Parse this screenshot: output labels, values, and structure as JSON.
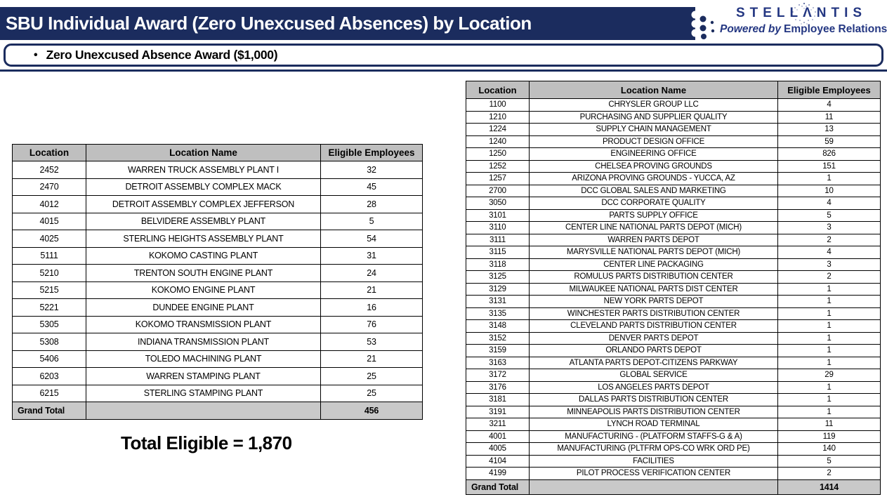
{
  "title_bar": {
    "title": "SBU Individual Award (Zero Unexcused Absences) by Location"
  },
  "logo": {
    "brand": "STELLΛNTIS",
    "tagline_prefix": "Powered by",
    "tagline_suffix": "Employee Relations"
  },
  "callout": {
    "bullet": "•",
    "text": "Zero Unexcused Absence Award ($1,000)"
  },
  "left_table": {
    "headers": [
      "Location",
      "Location Name",
      "Eligible Employees"
    ],
    "rows": [
      {
        "location": "2452",
        "name": "WARREN TRUCK ASSEMBLY PLANT I",
        "eligible": "32"
      },
      {
        "location": "2470",
        "name": "DETROIT ASSEMBLY COMPLEX MACK",
        "eligible": "45"
      },
      {
        "location": "4012",
        "name": "DETROIT ASSEMBLY COMPLEX JEFFERSON",
        "eligible": "28"
      },
      {
        "location": "4015",
        "name": "BELVIDERE ASSEMBLY PLANT",
        "eligible": "5"
      },
      {
        "location": "4025",
        "name": "STERLING HEIGHTS ASSEMBLY PLANT",
        "eligible": "54"
      },
      {
        "location": "5111",
        "name": "KOKOMO CASTING PLANT",
        "eligible": "31"
      },
      {
        "location": "5210",
        "name": "TRENTON SOUTH ENGINE PLANT",
        "eligible": "24"
      },
      {
        "location": "5215",
        "name": "KOKOMO ENGINE PLANT",
        "eligible": "21"
      },
      {
        "location": "5221",
        "name": "DUNDEE ENGINE PLANT",
        "eligible": "16"
      },
      {
        "location": "5305",
        "name": "KOKOMO TRANSMISSION PLANT",
        "eligible": "76"
      },
      {
        "location": "5308",
        "name": "INDIANA TRANSMISSION PLANT",
        "eligible": "53"
      },
      {
        "location": "5406",
        "name": "TOLEDO MACHINING PLANT",
        "eligible": "21"
      },
      {
        "location": "6203",
        "name": "WARREN STAMPING PLANT",
        "eligible": "25"
      },
      {
        "location": "6215",
        "name": "STERLING STAMPING PLANT",
        "eligible": "25"
      }
    ],
    "grand_total_label": "Grand Total",
    "grand_total_value": "456"
  },
  "right_table": {
    "headers": [
      "Location",
      "Location Name",
      "Eligible Employees"
    ],
    "rows": [
      {
        "location": "1100",
        "name": "CHRYSLER GROUP LLC",
        "eligible": "4"
      },
      {
        "location": "1210",
        "name": "PURCHASING AND SUPPLIER QUALITY",
        "eligible": "11"
      },
      {
        "location": "1224",
        "name": "SUPPLY CHAIN MANAGEMENT",
        "eligible": "13"
      },
      {
        "location": "1240",
        "name": "PRODUCT DESIGN OFFICE",
        "eligible": "59"
      },
      {
        "location": "1250",
        "name": "ENGINEERING OFFICE",
        "eligible": "826"
      },
      {
        "location": "1252",
        "name": "CHELSEA PROVING GROUNDS",
        "eligible": "151"
      },
      {
        "location": "1257",
        "name": "ARIZONA PROVING GROUNDS - YUCCA, AZ",
        "eligible": "1"
      },
      {
        "location": "2700",
        "name": "DCC GLOBAL SALES AND MARKETING",
        "eligible": "10"
      },
      {
        "location": "3050",
        "name": "DCC CORPORATE QUALITY",
        "eligible": "4"
      },
      {
        "location": "3101",
        "name": "PARTS SUPPLY OFFICE",
        "eligible": "5"
      },
      {
        "location": "3110",
        "name": "CENTER LINE NATIONAL PARTS DEPOT (MICH)",
        "eligible": "3"
      },
      {
        "location": "3111",
        "name": "WARREN PARTS DEPOT",
        "eligible": "2"
      },
      {
        "location": "3115",
        "name": "MARYSVILLE NATIONAL PARTS DEPOT (MICH)",
        "eligible": "4"
      },
      {
        "location": "3118",
        "name": "CENTER LINE PACKAGING",
        "eligible": "3"
      },
      {
        "location": "3125",
        "name": "ROMULUS PARTS DISTRIBUTION CENTER",
        "eligible": "2"
      },
      {
        "location": "3129",
        "name": "MILWAUKEE NATIONAL PARTS DIST CENTER",
        "eligible": "1"
      },
      {
        "location": "3131",
        "name": "NEW YORK PARTS DEPOT",
        "eligible": "1"
      },
      {
        "location": "3135",
        "name": "WINCHESTER PARTS DISTRIBUTION CENTER",
        "eligible": "1"
      },
      {
        "location": "3148",
        "name": "CLEVELAND PARTS DISTRIBUTION CENTER",
        "eligible": "1"
      },
      {
        "location": "3152",
        "name": "DENVER PARTS DEPOT",
        "eligible": "1"
      },
      {
        "location": "3159",
        "name": "ORLANDO PARTS DEPOT",
        "eligible": "1"
      },
      {
        "location": "3163",
        "name": "ATLANTA PARTS DEPOT-CITIZENS PARKWAY",
        "eligible": "1"
      },
      {
        "location": "3172",
        "name": "GLOBAL SERVICE",
        "eligible": "29"
      },
      {
        "location": "3176",
        "name": "LOS ANGELES PARTS DEPOT",
        "eligible": "1"
      },
      {
        "location": "3181",
        "name": "DALLAS PARTS DISTRIBUTION CENTER",
        "eligible": "1"
      },
      {
        "location": "3191",
        "name": "MINNEAPOLIS PARTS DISTRIBUTION CENTER",
        "eligible": "1"
      },
      {
        "location": "3211",
        "name": "LYNCH ROAD TERMINAL",
        "eligible": "11"
      },
      {
        "location": "4001",
        "name": "MANUFACTURING - (PLATFORM STAFFS-G & A)",
        "eligible": "119"
      },
      {
        "location": "4005",
        "name": "MANUFACTURING (PLTFRM OPS-CO WRK ORD PE)",
        "eligible": "140"
      },
      {
        "location": "4104",
        "name": "FACILITIES",
        "eligible": "5"
      },
      {
        "location": "4199",
        "name": "PILOT PROCESS VERIFICATION CENTER",
        "eligible": "2"
      }
    ],
    "grand_total_label": "Grand Total",
    "grand_total_value": "1414"
  },
  "total_eligible": "Total Eligible = 1,870",
  "colors": {
    "navy": "#1b2c5e",
    "logo_blue": "#243782",
    "table_header_gray": "#bfbfbf"
  }
}
